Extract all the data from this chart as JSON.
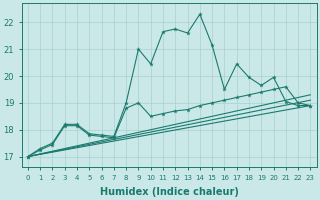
{
  "xlabel": "Humidex (Indice chaleur)",
  "bg_color": "#cbe8e8",
  "line_color": "#1a7a6e",
  "grid_color": "#a8d0d0",
  "xlim": [
    -0.5,
    23.5
  ],
  "ylim": [
    16.6,
    22.7
  ],
  "xticks": [
    0,
    1,
    2,
    3,
    4,
    5,
    6,
    7,
    8,
    9,
    10,
    11,
    12,
    13,
    14,
    15,
    16,
    17,
    18,
    19,
    20,
    21,
    22,
    23
  ],
  "yticks": [
    17,
    18,
    19,
    20,
    21,
    22
  ],
  "series": [
    {
      "x": [
        0,
        1,
        2,
        3,
        4,
        5,
        6,
        7,
        8,
        9,
        10,
        11,
        12,
        13,
        14,
        15,
        16,
        17,
        18,
        19,
        20,
        21,
        22,
        23
      ],
      "y": [
        17.0,
        17.3,
        17.5,
        18.2,
        18.2,
        17.85,
        17.8,
        17.75,
        19.0,
        21.0,
        20.45,
        21.65,
        21.75,
        21.6,
        22.3,
        21.15,
        19.5,
        20.45,
        19.95,
        19.65,
        19.95,
        19.05,
        18.9,
        18.9
      ],
      "marker": true
    },
    {
      "x": [
        0,
        1,
        2,
        3,
        4,
        5,
        6,
        7,
        8,
        9,
        10,
        11,
        12,
        13,
        14,
        15,
        16,
        17,
        18,
        19,
        20,
        21,
        22,
        23
      ],
      "y": [
        17.0,
        17.25,
        17.45,
        18.15,
        18.15,
        17.8,
        17.75,
        17.7,
        18.8,
        19.0,
        18.5,
        18.6,
        18.7,
        18.75,
        18.9,
        19.0,
        19.1,
        19.2,
        19.3,
        19.4,
        19.5,
        19.6,
        19.0,
        18.9
      ],
      "marker": true
    },
    {
      "x": [
        0,
        23
      ],
      "y": [
        17.0,
        18.9
      ],
      "marker": false
    },
    {
      "x": [
        0,
        23
      ],
      "y": [
        17.0,
        19.1
      ],
      "marker": false
    },
    {
      "x": [
        0,
        23
      ],
      "y": [
        17.0,
        19.3
      ],
      "marker": false
    }
  ]
}
